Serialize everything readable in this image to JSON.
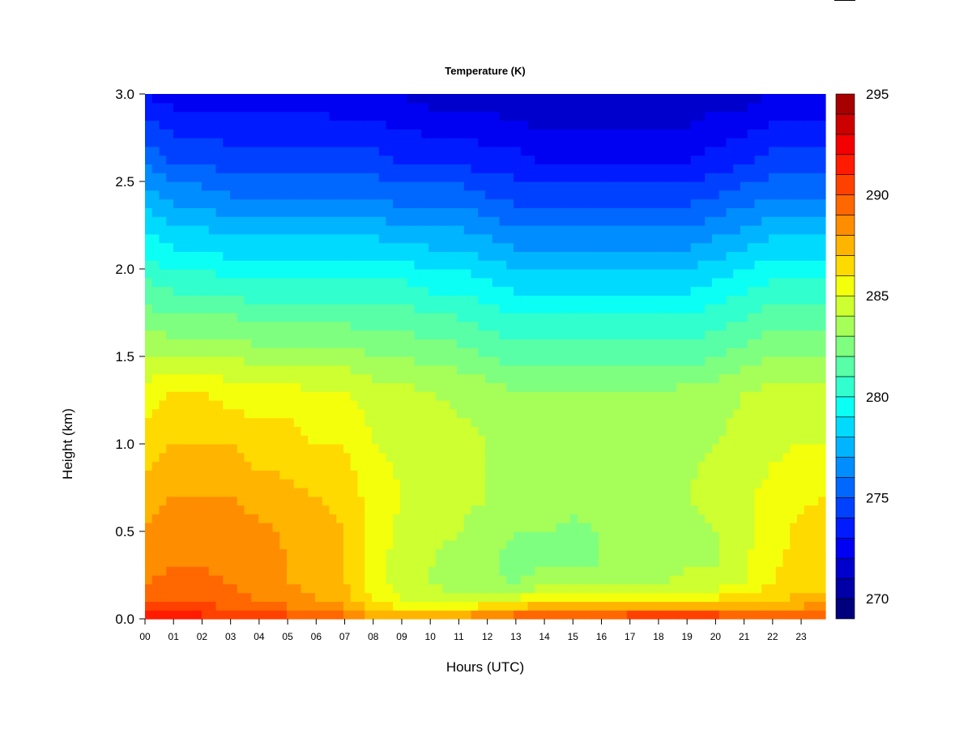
{
  "chart_data": {
    "type": "heatmap",
    "title": "Temperature (K)",
    "xlabel": "Hours (UTC)",
    "ylabel": "Height (km)",
    "xlim": [
      0,
      23.85
    ],
    "ylim": [
      0,
      3.0
    ],
    "x_ticks": [
      "00",
      "01",
      "02",
      "03",
      "04",
      "05",
      "06",
      "07",
      "08",
      "09",
      "10",
      "11",
      "12",
      "13",
      "14",
      "15",
      "16",
      "17",
      "18",
      "19",
      "20",
      "21",
      "22",
      "23"
    ],
    "y_ticks": [
      "0.0",
      "0.5",
      "1.0",
      "1.5",
      "2.0",
      "2.5",
      "3.0"
    ],
    "colorbar": {
      "min": 269,
      "max": 295,
      "step": 1,
      "tick_labels": [
        "270",
        "275",
        "280",
        "285",
        "290",
        "295"
      ],
      "tick_values": [
        270,
        275,
        280,
        285,
        290,
        295
      ],
      "colors": [
        "#00007f",
        "#0000a6",
        "#0000cd",
        "#0000f3",
        "#001bff",
        "#0041ff",
        "#0067ff",
        "#008dff",
        "#00b4ff",
        "#00daff",
        "#0bfff4",
        "#31ffcd",
        "#58ffa6",
        "#7fff7f",
        "#a6ff58",
        "#cdff31",
        "#f4ff0b",
        "#ffda00",
        "#ffb400",
        "#ff8d00",
        "#ff6700",
        "#ff4100",
        "#ff1b00",
        "#f30000",
        "#cd0000",
        "#a60000"
      ]
    },
    "hours": [
      0,
      1,
      2,
      3,
      4,
      5,
      6,
      7,
      8,
      9,
      10,
      11,
      12,
      13,
      14,
      15,
      16,
      17,
      18,
      19,
      20,
      21,
      22,
      23,
      23.85
    ],
    "heights_km": [
      0.0,
      0.05,
      0.1,
      0.2,
      0.3,
      0.5,
      0.7,
      1.0,
      1.3,
      1.5,
      1.8,
      2.0,
      2.3,
      2.6,
      3.0
    ],
    "temperature_K": [
      [
        291.5,
        290.5,
        289.5,
        289.0,
        288.5,
        288.0,
        287.5,
        286.5,
        285.5,
        284.0,
        282.0,
        280.5,
        278.5,
        276.0,
        273.0
      ],
      [
        291.5,
        290.5,
        289.8,
        289.3,
        289.0,
        288.6,
        288.0,
        287.0,
        286.0,
        284.0,
        281.5,
        280.0,
        277.5,
        275.0,
        272.5
      ],
      [
        291.5,
        290.5,
        289.8,
        289.3,
        289.0,
        288.8,
        288.0,
        287.0,
        286.0,
        284.0,
        281.5,
        280.0,
        277.5,
        275.0,
        272.5
      ],
      [
        291.0,
        290.0,
        289.5,
        289.0,
        288.5,
        288.5,
        288.0,
        287.0,
        285.5,
        284.0,
        281.5,
        279.5,
        277.0,
        274.5,
        272.5
      ],
      [
        290.5,
        289.5,
        289.0,
        288.5,
        288.5,
        288.3,
        287.5,
        286.5,
        285.5,
        283.5,
        281.0,
        279.5,
        277.0,
        274.5,
        272.5
      ],
      [
        290.5,
        289.5,
        288.5,
        288.0,
        288.0,
        287.8,
        287.3,
        286.5,
        285.5,
        283.5,
        281.0,
        279.5,
        277.0,
        274.5,
        272.5
      ],
      [
        290.0,
        289.0,
        288.0,
        287.8,
        287.5,
        287.5,
        287.0,
        286.0,
        285.0,
        283.5,
        281.0,
        279.5,
        277.0,
        274.5,
        272.5
      ],
      [
        289.5,
        288.5,
        287.5,
        287.0,
        287.0,
        287.0,
        286.7,
        286.0,
        285.0,
        283.5,
        281.0,
        279.5,
        277.0,
        274.5,
        272.0
      ],
      [
        288.5,
        287.0,
        285.8,
        285.5,
        285.5,
        285.5,
        285.5,
        285.0,
        284.5,
        283.0,
        281.0,
        279.5,
        277.0,
        274.5,
        272.0
      ],
      [
        288.0,
        286.5,
        285.0,
        284.5,
        284.5,
        284.8,
        285.0,
        284.8,
        284.3,
        283.0,
        281.0,
        279.5,
        276.5,
        274.0,
        272.0
      ],
      [
        288.0,
        286.0,
        284.5,
        284.0,
        284.0,
        284.3,
        284.5,
        284.5,
        284.0,
        282.5,
        280.5,
        279.0,
        276.5,
        274.0,
        271.5
      ],
      [
        288.5,
        286.5,
        284.5,
        283.5,
        283.5,
        284.0,
        284.3,
        284.3,
        283.8,
        282.5,
        280.5,
        279.0,
        276.5,
        274.0,
        271.5
      ],
      [
        289.5,
        287.5,
        285.0,
        283.5,
        283.3,
        283.5,
        284.0,
        284.0,
        283.5,
        282.0,
        280.0,
        278.5,
        276.0,
        273.5,
        271.5
      ],
      [
        290.0,
        288.0,
        285.5,
        283.0,
        282.5,
        283.0,
        283.5,
        283.5,
        283.0,
        281.5,
        279.5,
        278.0,
        275.5,
        273.5,
        271.0
      ],
      [
        290.5,
        289.0,
        286.0,
        283.5,
        283.0,
        283.0,
        283.5,
        283.5,
        283.0,
        281.5,
        279.5,
        278.0,
        275.5,
        273.0,
        271.0
      ],
      [
        290.5,
        288.5,
        286.0,
        283.5,
        283.0,
        282.8,
        283.3,
        283.3,
        283.0,
        281.5,
        279.5,
        278.0,
        275.5,
        273.0,
        271.0
      ],
      [
        290.5,
        288.5,
        286.0,
        283.5,
        283.0,
        283.0,
        283.5,
        283.5,
        283.0,
        281.5,
        279.5,
        278.0,
        275.5,
        273.0,
        271.0
      ],
      [
        291.0,
        289.0,
        286.5,
        284.0,
        283.5,
        283.3,
        283.5,
        283.5,
        283.0,
        281.5,
        279.5,
        278.0,
        275.5,
        273.0,
        271.0
      ],
      [
        291.0,
        289.0,
        286.5,
        284.0,
        283.5,
        283.5,
        283.8,
        283.5,
        283.0,
        281.5,
        279.5,
        278.0,
        275.5,
        273.0,
        271.0
      ],
      [
        291.0,
        289.0,
        286.5,
        284.3,
        284.0,
        283.8,
        284.0,
        283.8,
        283.3,
        281.5,
        279.5,
        278.0,
        275.5,
        273.0,
        271.0
      ],
      [
        291.0,
        289.0,
        286.5,
        284.5,
        284.0,
        284.0,
        284.3,
        284.0,
        283.5,
        282.0,
        280.0,
        278.5,
        276.0,
        273.5,
        271.5
      ],
      [
        290.5,
        288.5,
        286.5,
        285.0,
        284.8,
        284.8,
        284.8,
        284.5,
        284.0,
        282.5,
        280.5,
        279.0,
        276.5,
        274.0,
        271.5
      ],
      [
        290.0,
        288.5,
        287.0,
        286.0,
        285.8,
        285.5,
        285.3,
        284.8,
        284.3,
        283.0,
        281.0,
        279.5,
        277.0,
        274.5,
        272.0
      ],
      [
        289.5,
        288.5,
        287.5,
        286.5,
        286.5,
        286.3,
        285.8,
        285.0,
        284.5,
        283.0,
        281.0,
        279.5,
        277.0,
        274.5,
        272.0
      ],
      [
        289.5,
        288.5,
        287.5,
        286.8,
        286.5,
        286.5,
        286.0,
        285.0,
        284.5,
        283.0,
        281.0,
        279.5,
        277.0,
        274.5,
        272.0
      ]
    ]
  }
}
